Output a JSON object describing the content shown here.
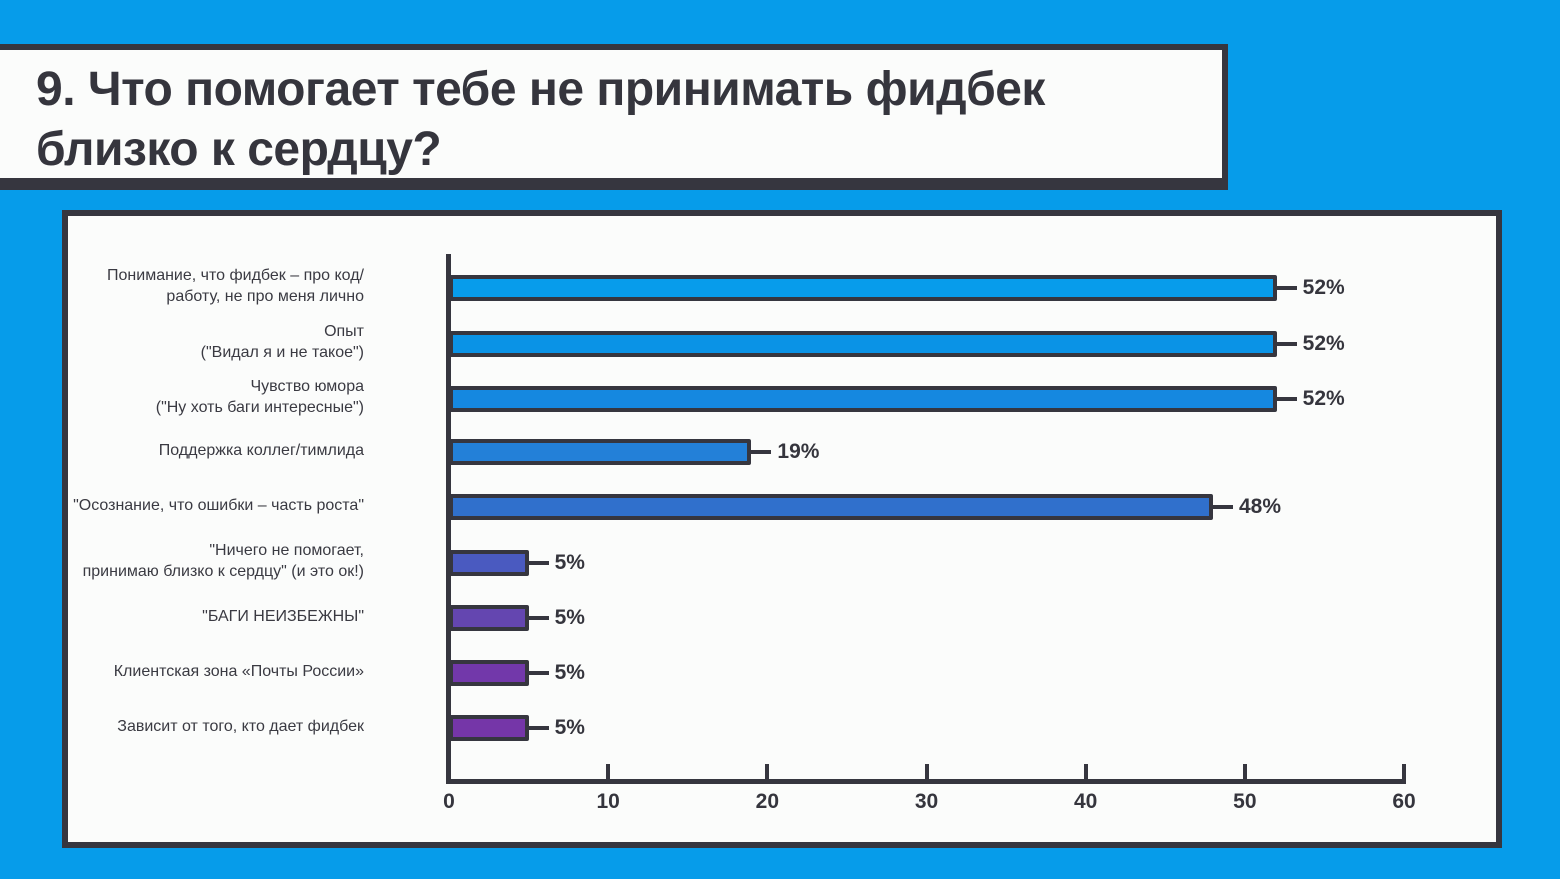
{
  "title": "9. Что помогает тебе не принимать фидбек\nблизко к сердцу?",
  "chart_data": {
    "type": "bar",
    "orientation": "horizontal",
    "title": "9. Что помогает тебе не принимать фидбек близко к сердцу?",
    "xlabel": "",
    "ylabel": "",
    "xlim": [
      0,
      60
    ],
    "x_ticks": [
      "0",
      "10",
      "20",
      "30",
      "40",
      "50",
      "60"
    ],
    "grid": false,
    "legend": null,
    "categories": [
      "Понимание, что фидбек – про код/\nработу, не про меня лично",
      "Опыт\n(\"Видал я и не такое\")",
      "Чувство юмора\n(\"Ну хоть баги интересные\")",
      "Поддержка коллег/тимлида",
      "\"Осознание, что ошибки – часть роста\"",
      "\"Ничего не помогает,\nпринимаю близко к сердцу\"  (и это ок!)",
      "\"БАГИ НЕИЗБЕЖНЫ\"",
      "Клиентская зона «Почты России»",
      "Зависит от того, кто дает фидбек"
    ],
    "values": [
      52,
      52,
      52,
      19,
      48,
      5,
      5,
      5,
      5
    ],
    "value_labels": [
      "52%",
      "52%",
      "52%",
      "19%",
      "48%",
      "5%",
      "5%",
      "5%",
      "5%"
    ],
    "bar_colors": [
      "#079ceb",
      "#0a93e6",
      "#1588e0",
      "#2380d8",
      "#3070cc",
      "#4a5ac0",
      "#6446b0",
      "#7238aa",
      "#7536a8"
    ]
  },
  "colors": {
    "background": "#069cea",
    "panel": "#fbfcfb",
    "border": "#36363f",
    "text": "#35353d"
  }
}
